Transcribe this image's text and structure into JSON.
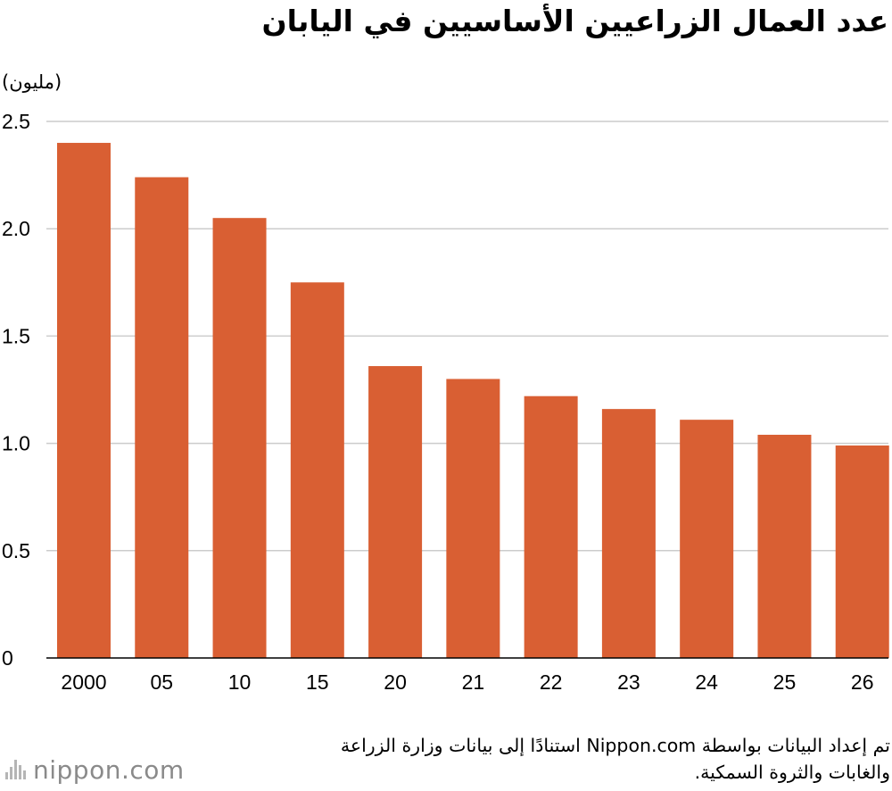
{
  "title": "عدد العمال الزراعيين الأساسيين في اليابان",
  "unit_label": "(مليون)",
  "source_line1": "تم إعداد البيانات بواسطة Nippon.com استنادًا إلى بيانات وزارة الزراعة",
  "source_line2": "والغابات والثروة السمكية.",
  "logo": {
    "name": "nippon",
    "dot": ".",
    "suffix": "com"
  },
  "colors": {
    "bar": "#d95f33",
    "grid": "#cccccc",
    "axis": "#000000"
  },
  "chart_data": {
    "type": "bar",
    "categories": [
      "2000",
      "05",
      "10",
      "15",
      "20",
      "21",
      "22",
      "23",
      "24",
      "25",
      "26"
    ],
    "values": [
      2.4,
      2.24,
      2.05,
      1.75,
      1.36,
      1.3,
      1.22,
      1.16,
      1.11,
      1.04,
      0.99
    ],
    "yticks": [
      "0",
      "0.5",
      "1.0",
      "1.5",
      "2.0",
      "2.5"
    ],
    "ylim": [
      0,
      2.5
    ],
    "grid": true,
    "legend": "none"
  }
}
